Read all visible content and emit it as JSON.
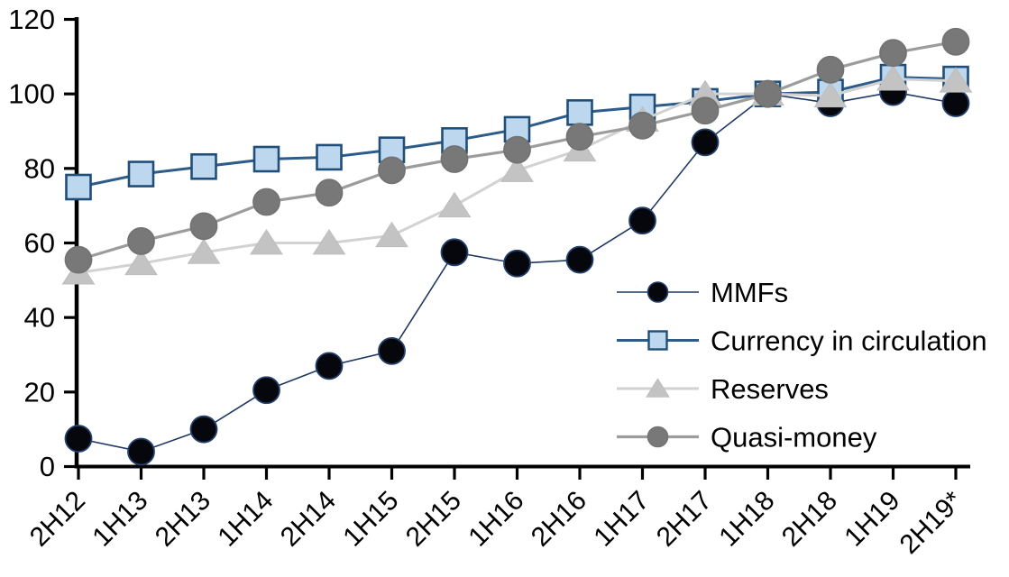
{
  "page": {
    "background": "#ffffff"
  },
  "chart_data": {
    "type": "line",
    "title": "",
    "xlabel": "",
    "ylabel": "",
    "categories": [
      "2H12",
      "1H13",
      "2H13",
      "1H14",
      "2H14",
      "1H15",
      "2H15",
      "1H16",
      "2H16",
      "1H17",
      "2H17",
      "1H18",
      "2H18",
      "1H19",
      "2H19*"
    ],
    "series": [
      {
        "name": "MMFs",
        "marker": "circle",
        "line_color": "#1f3864",
        "marker_fill": "#06060d",
        "marker_stroke": "#24416e",
        "line_width": 1.6,
        "values": [
          7.5,
          4,
          10,
          20.5,
          27,
          31,
          57.5,
          54.5,
          55.5,
          66,
          87,
          100,
          97.5,
          100.5,
          97.5
        ]
      },
      {
        "name": "Currency in circulation",
        "marker": "square",
        "line_color": "#2e5c8a",
        "marker_fill": "#bdd7ee",
        "marker_stroke": "#1f4e79",
        "line_width": 3,
        "values": [
          75,
          78.5,
          80.5,
          82.5,
          83,
          85,
          87.5,
          90.5,
          95,
          96.5,
          98,
          100,
          100.5,
          104.5,
          104
        ]
      },
      {
        "name": "Reserves",
        "marker": "triangle",
        "line_color": "#d2d2d2",
        "marker_fill": "#c3c3c3",
        "marker_stroke": "#bdbdbd",
        "line_width": 3,
        "values": [
          52,
          54.5,
          57.5,
          60,
          60,
          62,
          70,
          79.5,
          85,
          93,
          100,
          100,
          99.5,
          104,
          103.5
        ]
      },
      {
        "name": "Quasi-money",
        "marker": "circle",
        "line_color": "#9c9c9c",
        "marker_fill": "#787878",
        "marker_stroke": "#737373",
        "line_width": 3.2,
        "values": [
          55.5,
          60.5,
          64.5,
          71,
          73.5,
          79.5,
          82.5,
          85,
          88.5,
          91.5,
          95.5,
          100,
          106.5,
          111,
          114
        ]
      }
    ],
    "y_axis": {
      "min": 0,
      "max": 120,
      "step": 20,
      "tick_labels": [
        "0",
        "20",
        "40",
        "60",
        "80",
        "100",
        "120"
      ]
    },
    "x_axis": {
      "tick_labels": [
        "2H12",
        "1H13",
        "2H13",
        "1H14",
        "2H14",
        "1H15",
        "2H15",
        "1H16",
        "2H16",
        "1H17",
        "2H17",
        "1H18",
        "2H18",
        "1H19",
        "2H19*"
      ]
    },
    "legend": {
      "position": "inside-right",
      "entries": [
        "MMFs",
        "Currency in circulation",
        "Reserves",
        "Quasi-money"
      ]
    },
    "grid": "off",
    "axis_color": "#000000",
    "text_color": "#000000"
  }
}
